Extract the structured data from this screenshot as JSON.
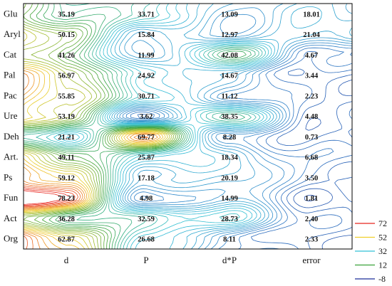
{
  "chart_data": {
    "type": "heatmap",
    "title": "",
    "xlabel": "",
    "ylabel": "",
    "rows": [
      "Glu",
      "Aryl",
      "Cat",
      "Pal",
      "Pac",
      "Ure",
      "Deh",
      "Art.",
      "Ps",
      "Fun",
      "Act",
      "Org"
    ],
    "columns": [
      "d",
      "P",
      "d*P",
      "error"
    ],
    "values": [
      [
        35.19,
        33.71,
        13.09,
        18.01
      ],
      [
        50.15,
        15.84,
        12.97,
        21.04
      ],
      [
        41.26,
        11.99,
        42.08,
        4.67
      ],
      [
        56.97,
        24.92,
        14.67,
        3.44
      ],
      [
        55.85,
        30.71,
        11.12,
        2.23
      ],
      [
        53.19,
        3.62,
        38.35,
        4.48
      ],
      [
        21.21,
        69.77,
        8.28,
        0.73
      ],
      [
        49.11,
        25.87,
        18.34,
        6.68
      ],
      [
        59.12,
        17.18,
        20.19,
        3.5
      ],
      [
        78.23,
        4.98,
        14.99,
        1.81
      ],
      [
        36.28,
        32.59,
        28.73,
        2.4
      ],
      [
        62.87,
        26.68,
        8.11,
        2.33
      ]
    ],
    "value_labels": [
      [
        "35.19",
        "33.71",
        "13.09",
        "18.01"
      ],
      [
        "50.15",
        "15.84",
        "12.97",
        "21.04"
      ],
      [
        "41.26",
        "11.99",
        "42.08",
        "4.67"
      ],
      [
        "56.97",
        "24.92",
        "14.67",
        "3.44"
      ],
      [
        "55.85",
        "30.71",
        "11.12",
        "2.23"
      ],
      [
        "53.19",
        "3.62",
        "38.35",
        "4.48"
      ],
      [
        "21.21",
        "69.77",
        "8.28",
        "0.73"
      ],
      [
        "49.11",
        "25.87",
        "18.34",
        "6.68"
      ],
      [
        "59.12",
        "17.18",
        "20.19",
        "3.50"
      ],
      [
        "78.23",
        "4.98",
        "14.99",
        "1.81"
      ],
      [
        "36.28",
        "32.59",
        "28.73",
        "2.40"
      ],
      [
        "62.87",
        "26.68",
        "8.11",
        "2.33"
      ]
    ],
    "legend": {
      "placement": "bottom-right",
      "entries": [
        {
          "label": "72",
          "color": "#e8261e",
          "value": 72
        },
        {
          "label": "52",
          "color": "#f0cf2a",
          "value": 52
        },
        {
          "label": "32",
          "color": "#31c0d6",
          "value": 32
        },
        {
          "label": "12",
          "color": "#3aa23a",
          "value": 12
        },
        {
          "label": "-8",
          "color": "#1a2f99",
          "value": -8
        }
      ]
    },
    "contour_colors": [
      "#1a2f99",
      "#2f7fc8",
      "#31c0d6",
      "#3aa23a",
      "#f0cf2a",
      "#e8261e"
    ],
    "grid": false
  }
}
